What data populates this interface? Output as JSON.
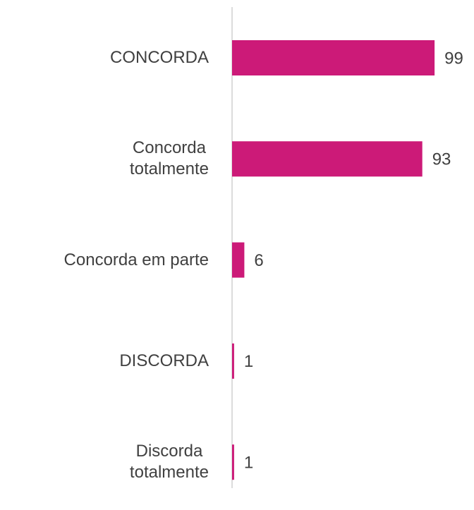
{
  "chart_data": {
    "type": "bar",
    "orientation": "horizontal",
    "categories": [
      "CONCORDA",
      "Concorda\ntotalmente",
      "Concorda em parte",
      "DISCORDA",
      "Discorda\ntotalmente"
    ],
    "values": [
      99,
      93,
      6,
      1,
      1
    ],
    "color": "#cc1a78",
    "xlim": [
      0,
      100
    ]
  }
}
